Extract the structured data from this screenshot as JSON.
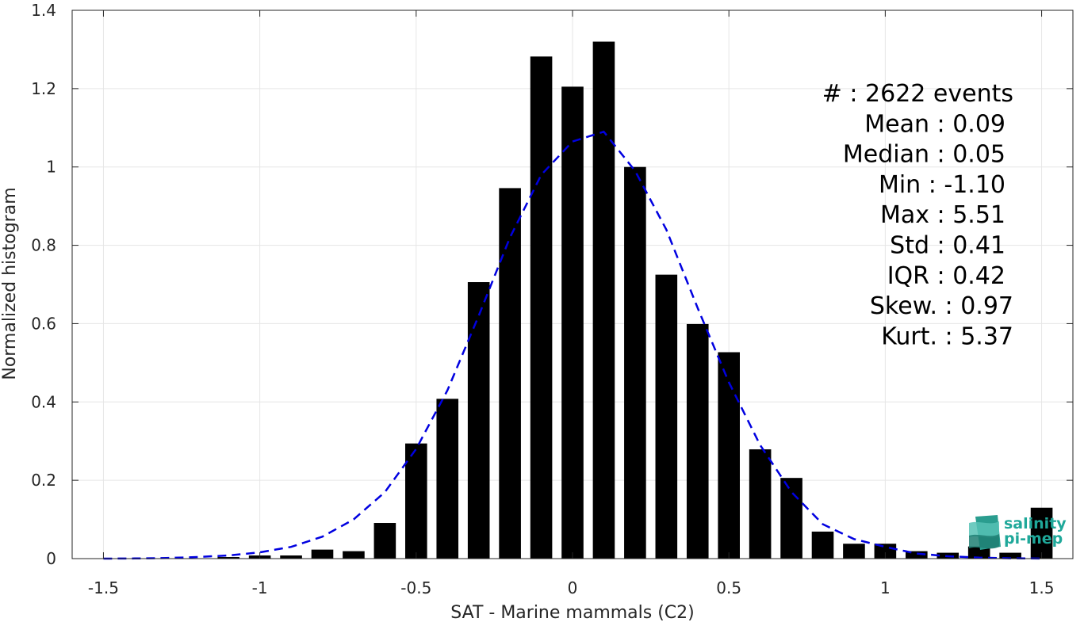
{
  "chart_data": {
    "type": "bar",
    "title": "",
    "xlabel": "SAT - Marine mammals (C2)",
    "ylabel": "Normalized histogram",
    "xlim": [
      -1.6,
      1.6
    ],
    "ylim": [
      0,
      1.4
    ],
    "xticks": [
      "-1.5",
      "-1",
      "-0.5",
      "0",
      "0.5",
      "1",
      "1.5"
    ],
    "yticks": [
      "0",
      "0.2",
      "0.4",
      "0.6",
      "0.8",
      "1",
      "1.2",
      "1.4"
    ],
    "grid": true,
    "bar_color": "#000000",
    "bins": [
      -1.5,
      -1.4,
      -1.3,
      -1.2,
      -1.1,
      -1.0,
      -0.9,
      -0.8,
      -0.7,
      -0.6,
      -0.5,
      -0.4,
      -0.3,
      -0.2,
      -0.1,
      0.0,
      0.1,
      0.2,
      0.3,
      0.4,
      0.5,
      0.6,
      0.7,
      0.8,
      0.9,
      1.0,
      1.1,
      1.2,
      1.3,
      1.4,
      1.5
    ],
    "values": [
      0,
      0,
      0,
      0,
      0.004,
      0.008,
      0.008,
      0.023,
      0.019,
      0.091,
      0.294,
      0.408,
      0.706,
      0.946,
      1.282,
      1.205,
      1.32,
      1.0,
      0.725,
      0.599,
      0.527,
      0.279,
      0.206,
      0.069,
      0.038,
      0.038,
      0.019,
      0.015,
      0.031,
      0.015,
      0.13
    ],
    "fit_curve": {
      "style": "dashed",
      "color": "#0000e0",
      "x": [
        -1.5,
        -1.4,
        -1.3,
        -1.2,
        -1.1,
        -1.0,
        -0.9,
        -0.8,
        -0.7,
        -0.6,
        -0.5,
        -0.4,
        -0.3,
        -0.2,
        -0.1,
        0.0,
        0.1,
        0.2,
        0.3,
        0.4,
        0.5,
        0.6,
        0.7,
        0.8,
        0.9,
        1.0,
        1.1,
        1.2,
        1.3,
        1.4,
        1.5
      ],
      "y": [
        0.0,
        0.0005,
        0.0015,
        0.004,
        0.008,
        0.016,
        0.03,
        0.056,
        0.1,
        0.17,
        0.28,
        0.43,
        0.62,
        0.82,
        0.98,
        1.065,
        1.09,
        0.99,
        0.84,
        0.64,
        0.45,
        0.29,
        0.17,
        0.088,
        0.05,
        0.03,
        0.013,
        0.006,
        0.0025,
        0.0008,
        0.0002
      ]
    },
    "annotations": [
      "#  : 2622 events",
      "Mean : 0.09",
      "Median : 0.05",
      "Min : -1.10",
      "Max : 5.51",
      "Std : 0.41",
      "IQR : 0.42",
      "Skew. : 0.97",
      "Kurt. : 5.37"
    ]
  },
  "logo": {
    "line1": "salinity",
    "line2": "pi-mep",
    "color": "#1fa89a"
  }
}
